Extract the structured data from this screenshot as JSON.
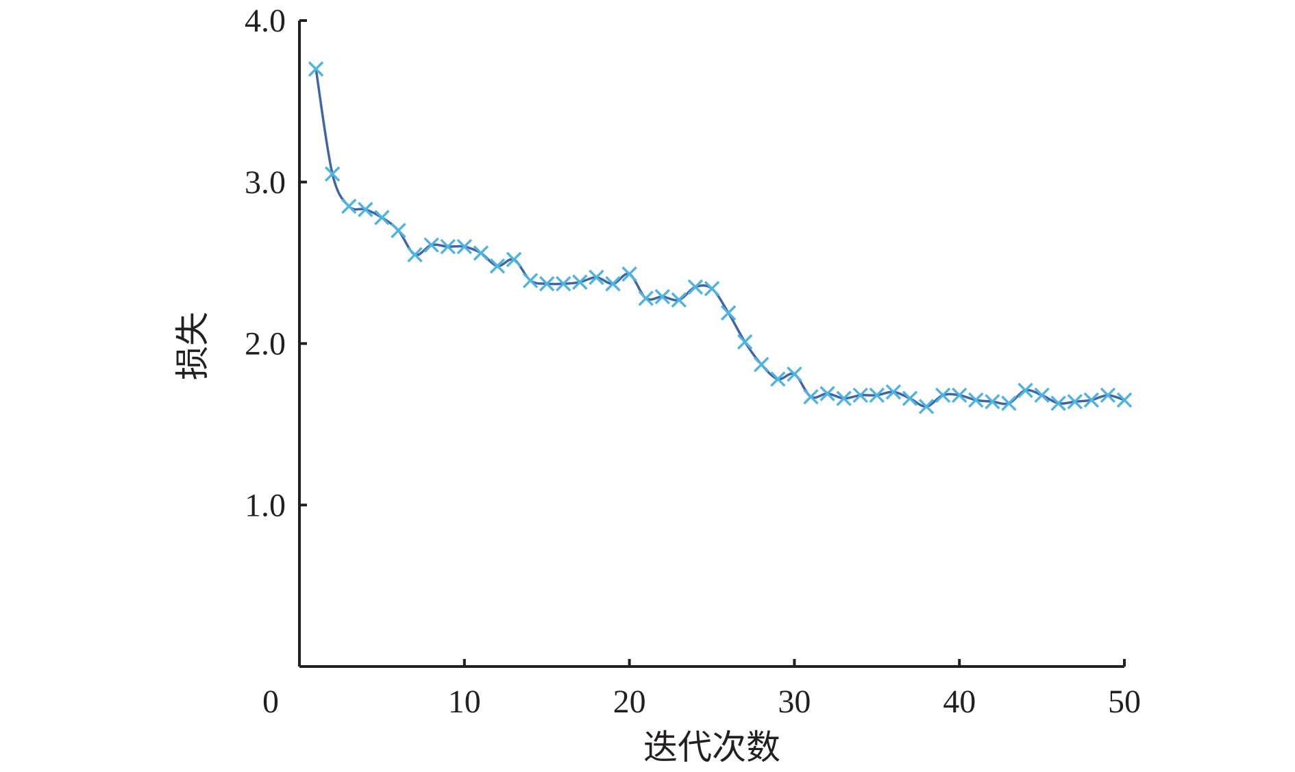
{
  "chart_data": {
    "type": "line",
    "title": "",
    "xlabel": "迭代次数",
    "ylabel": "损失",
    "xlim": [
      0,
      50
    ],
    "ylim": [
      0,
      4.0
    ],
    "x_ticks": [
      0,
      10,
      20,
      30,
      40,
      50
    ],
    "x_tick_labels": [
      "0",
      "10",
      "20",
      "30",
      "40",
      "50"
    ],
    "y_ticks": [
      1.0,
      2.0,
      3.0,
      4.0
    ],
    "y_tick_labels": [
      "1.0",
      "2.0",
      "3.0",
      "4.0"
    ],
    "grid": false,
    "line_color": "#3f64a8",
    "marker_color": "#4fb4df",
    "marker": "x",
    "series": [
      {
        "x": [
          1,
          2,
          3,
          4,
          5,
          6,
          7,
          8,
          9,
          10,
          11,
          12,
          13,
          14,
          15,
          16,
          17,
          18,
          19,
          20,
          21,
          22,
          23,
          24,
          25,
          26,
          27,
          28,
          29,
          30,
          31,
          32,
          33,
          34,
          35,
          36,
          37,
          38,
          39,
          40,
          41,
          42,
          43,
          44,
          45,
          46,
          47,
          48,
          49,
          50
        ],
        "values": [
          3.7,
          3.05,
          2.85,
          2.83,
          2.78,
          2.7,
          2.55,
          2.61,
          2.6,
          2.6,
          2.56,
          2.48,
          2.52,
          2.39,
          2.37,
          2.37,
          2.38,
          2.41,
          2.37,
          2.43,
          2.28,
          2.29,
          2.27,
          2.35,
          2.34,
          2.19,
          2.01,
          1.87,
          1.78,
          1.81,
          1.67,
          1.69,
          1.66,
          1.68,
          1.68,
          1.7,
          1.66,
          1.61,
          1.68,
          1.68,
          1.65,
          1.64,
          1.63,
          1.71,
          1.68,
          1.63,
          1.64,
          1.65,
          1.68,
          1.65
        ]
      }
    ]
  }
}
